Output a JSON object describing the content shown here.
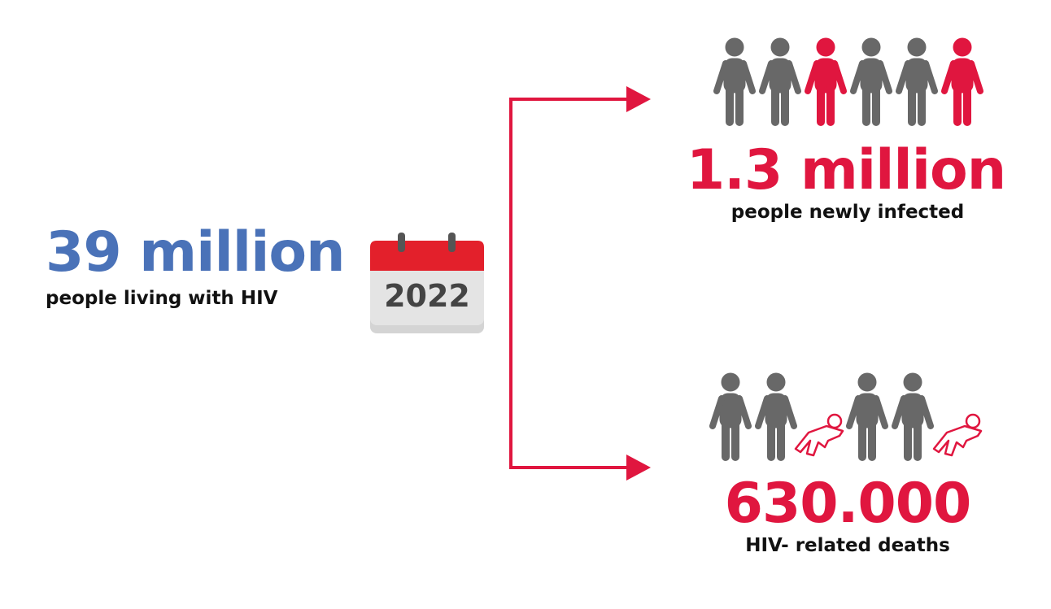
{
  "left": {
    "headline": "39 million",
    "caption": "people living with HIV"
  },
  "calendar": {
    "year": "2022"
  },
  "top": {
    "headline": "1.3 million",
    "caption": "people newly infected"
  },
  "bottom": {
    "headline": "630.000",
    "caption": "HIV- related deaths"
  }
}
